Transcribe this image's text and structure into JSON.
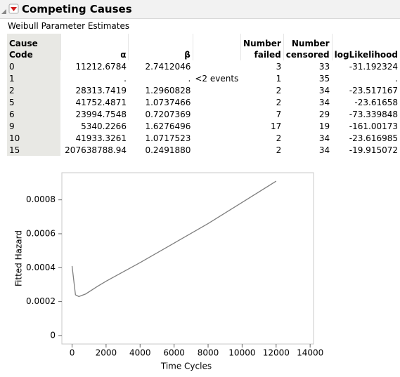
{
  "header": {
    "title": "Competing Causes"
  },
  "table": {
    "title": "Weibull Parameter Estimates",
    "columns": [
      "Cause Code",
      "α",
      "β",
      null,
      "Number failed",
      "Number censored",
      "logLikelihood"
    ],
    "rows": [
      [
        "0",
        "11212.6784",
        "2.7412046",
        null,
        "3",
        "33",
        "-31.192324"
      ],
      [
        "1",
        ".",
        ".",
        "<2 events",
        "1",
        "35",
        "."
      ],
      [
        "2",
        "28313.7419",
        "1.2960828",
        null,
        "2",
        "34",
        "-23.517167"
      ],
      [
        "5",
        "41752.4871",
        "1.0737466",
        null,
        "2",
        "34",
        "-23.61658"
      ],
      [
        "6",
        "23994.7548",
        "0.7207369",
        null,
        "7",
        "29",
        "-73.339848"
      ],
      [
        "9",
        "5340.2266",
        "1.6276496",
        null,
        "17",
        "19",
        "-161.00173"
      ],
      [
        "10",
        "41933.3261",
        "1.0717523",
        null,
        "2",
        "34",
        "-23.616985"
      ],
      [
        "15",
        "207638788.94",
        "0.2491880",
        null,
        "2",
        "34",
        "-19.915072"
      ]
    ]
  },
  "chart_data": {
    "type": "line",
    "x_label": "Time Cycles",
    "y_label": "Fitted Hazard",
    "x": [
      0,
      200,
      400,
      800,
      1500,
      2000,
      4000,
      6000,
      8000,
      10000,
      12000
    ],
    "series": [
      {
        "name": "Fitted Hazard",
        "color": "#7f7f7f",
        "values": [
          0.00041,
          0.00024,
          0.00023,
          0.000245,
          0.00029,
          0.00032,
          0.00043,
          0.000545,
          0.00066,
          0.000785,
          0.00091
        ]
      }
    ],
    "xlim": [
      -600,
      14200
    ],
    "ylim": [
      -5e-05,
      0.00096
    ],
    "xticks": [
      0,
      2000,
      4000,
      6000,
      8000,
      10000,
      12000,
      14000
    ],
    "yticks": [
      0,
      0.0002,
      0.0004,
      0.0006,
      0.0008
    ]
  }
}
